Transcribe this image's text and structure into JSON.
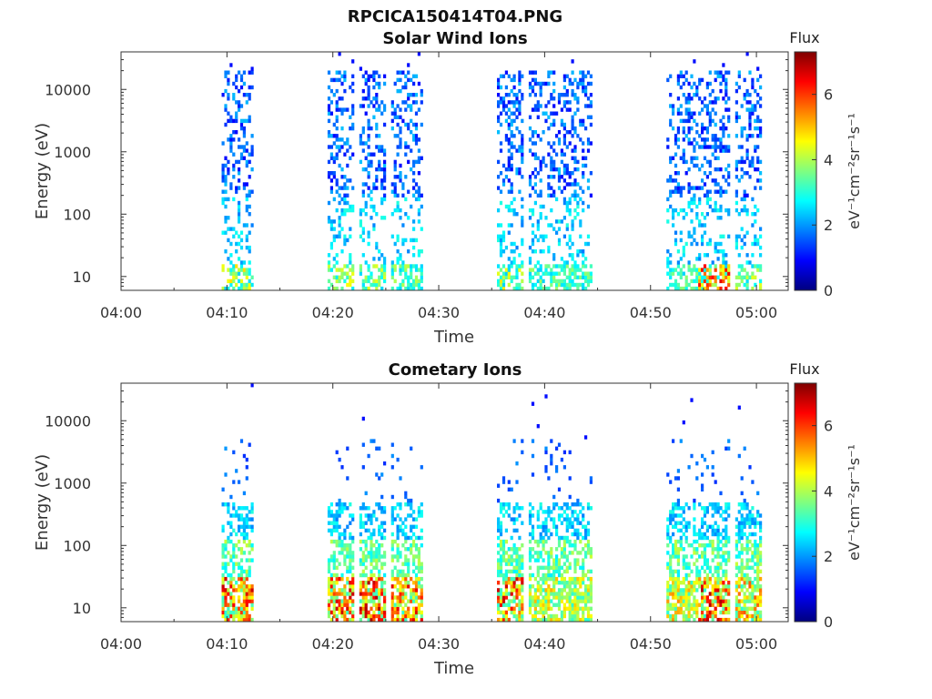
{
  "figure": {
    "title": "RPCICA150414T04.PNG"
  },
  "colorbar": {
    "label": "Flux",
    "unit_text": "eV⁻¹cm⁻²sr⁻¹s⁻¹",
    "ticks": [
      "0",
      "2",
      "4",
      "6"
    ],
    "range": [
      0,
      7.3
    ],
    "colormap": "jet"
  },
  "chart_data": [
    {
      "type": "heatmap",
      "title": "Solar Wind Ions",
      "xlabel": "Time",
      "ylabel": "Energy (eV)",
      "x_ticks": [
        "04:00",
        "04:10",
        "04:20",
        "04:30",
        "04:40",
        "04:50",
        "05:00"
      ],
      "y_ticks": [
        "10",
        "100",
        "1000",
        "10000"
      ],
      "y_scale": "log",
      "ylim": [
        6,
        40000
      ],
      "xlim": [
        "04:00",
        "05:03"
      ],
      "active_intervals": [
        {
          "start": "04:09:30",
          "end": "04:12:30",
          "peak_flux": 5.0
        },
        {
          "start": "04:19:30",
          "end": "04:22:00",
          "peak_flux": 4.6
        },
        {
          "start": "04:22:30",
          "end": "04:25:00",
          "peak_flux": 4.4
        },
        {
          "start": "04:25:30",
          "end": "04:28:30",
          "peak_flux": 4.2
        },
        {
          "start": "04:35:30",
          "end": "04:38:00",
          "peak_flux": 4.8
        },
        {
          "start": "04:38:30",
          "end": "04:41:30",
          "peak_flux": 4.0
        },
        {
          "start": "04:41:30",
          "end": "04:44:30",
          "peak_flux": 3.8
        },
        {
          "start": "04:51:30",
          "end": "04:54:30",
          "peak_flux": 3.8
        },
        {
          "start": "04:54:30",
          "end": "04:57:30",
          "peak_flux": 6.6
        },
        {
          "start": "04:58:00",
          "end": "05:00:30",
          "peak_flux": 4.4
        }
      ],
      "energy_profile": "high flux at low energy (~10 eV), sparse low flux (1-2) spread up to ~30000 eV"
    },
    {
      "type": "heatmap",
      "title": "Cometary Ions",
      "xlabel": "Time",
      "ylabel": "Energy (eV)",
      "x_ticks": [
        "04:00",
        "04:10",
        "04:20",
        "04:30",
        "04:40",
        "04:50",
        "05:00"
      ],
      "y_ticks": [
        "10",
        "100",
        "1000",
        "10000"
      ],
      "y_scale": "log",
      "ylim": [
        6,
        40000
      ],
      "xlim": [
        "04:00",
        "05:03"
      ],
      "active_intervals": [
        {
          "start": "04:09:30",
          "end": "04:12:30",
          "peak_flux": 6.8
        },
        {
          "start": "04:19:30",
          "end": "04:22:00",
          "peak_flux": 6.8
        },
        {
          "start": "04:22:30",
          "end": "04:25:00",
          "peak_flux": 7.0
        },
        {
          "start": "04:25:30",
          "end": "04:28:30",
          "peak_flux": 6.6
        },
        {
          "start": "04:35:30",
          "end": "04:38:00",
          "peak_flux": 6.8
        },
        {
          "start": "04:38:30",
          "end": "04:41:30",
          "peak_flux": 5.2
        },
        {
          "start": "04:41:30",
          "end": "04:44:30",
          "peak_flux": 5.0
        },
        {
          "start": "04:51:30",
          "end": "04:54:30",
          "peak_flux": 5.4
        },
        {
          "start": "04:54:30",
          "end": "04:57:30",
          "peak_flux": 7.0
        },
        {
          "start": "04:58:00",
          "end": "05:00:30",
          "peak_flux": 5.8
        }
      ],
      "energy_profile": "very high flux (5-7) below ~30 eV, moderate flux (2-4) up to ~500 eV, sparse points to ~25000 eV"
    }
  ]
}
